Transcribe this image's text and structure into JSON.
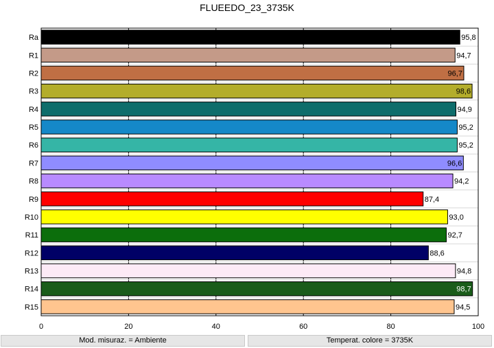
{
  "chart_data": {
    "type": "bar",
    "orientation": "horizontal",
    "title": "FLUEEDO_23_3735K",
    "categories": [
      "Ra",
      "R1",
      "R2",
      "R3",
      "R4",
      "R5",
      "R6",
      "R7",
      "R8",
      "R9",
      "R10",
      "R11",
      "R12",
      "R13",
      "R14",
      "R15"
    ],
    "values": [
      95.8,
      94.7,
      96.7,
      98.6,
      94.9,
      95.2,
      95.2,
      96.6,
      94.2,
      87.4,
      93.0,
      92.7,
      88.6,
      94.8,
      98.7,
      94.5
    ],
    "value_labels": [
      "95,8",
      "94,7",
      "96,7",
      "98,6",
      "94,9",
      "95,2",
      "95,2",
      "96,6",
      "94,2",
      "87,4",
      "93,0",
      "92,7",
      "88,6",
      "94,8",
      "98,7",
      "94,5"
    ],
    "colors": [
      "#000000",
      "#c49a88",
      "#c06f44",
      "#b3ad2b",
      "#0e6d6b",
      "#1588c8",
      "#35b5a6",
      "#8f8cff",
      "#b88aff",
      "#ff0000",
      "#ffff00",
      "#0c6e0c",
      "#000066",
      "#fdeaf6",
      "#1a5c1a",
      "#ffc58f"
    ],
    "xlim": [
      0,
      100
    ],
    "xticks": [
      0,
      20,
      40,
      60,
      80,
      100
    ],
    "grid": true
  },
  "footer": {
    "left": "Mod. misuraz. = Ambiente",
    "right": "Temperat. colore = 3735K"
  }
}
